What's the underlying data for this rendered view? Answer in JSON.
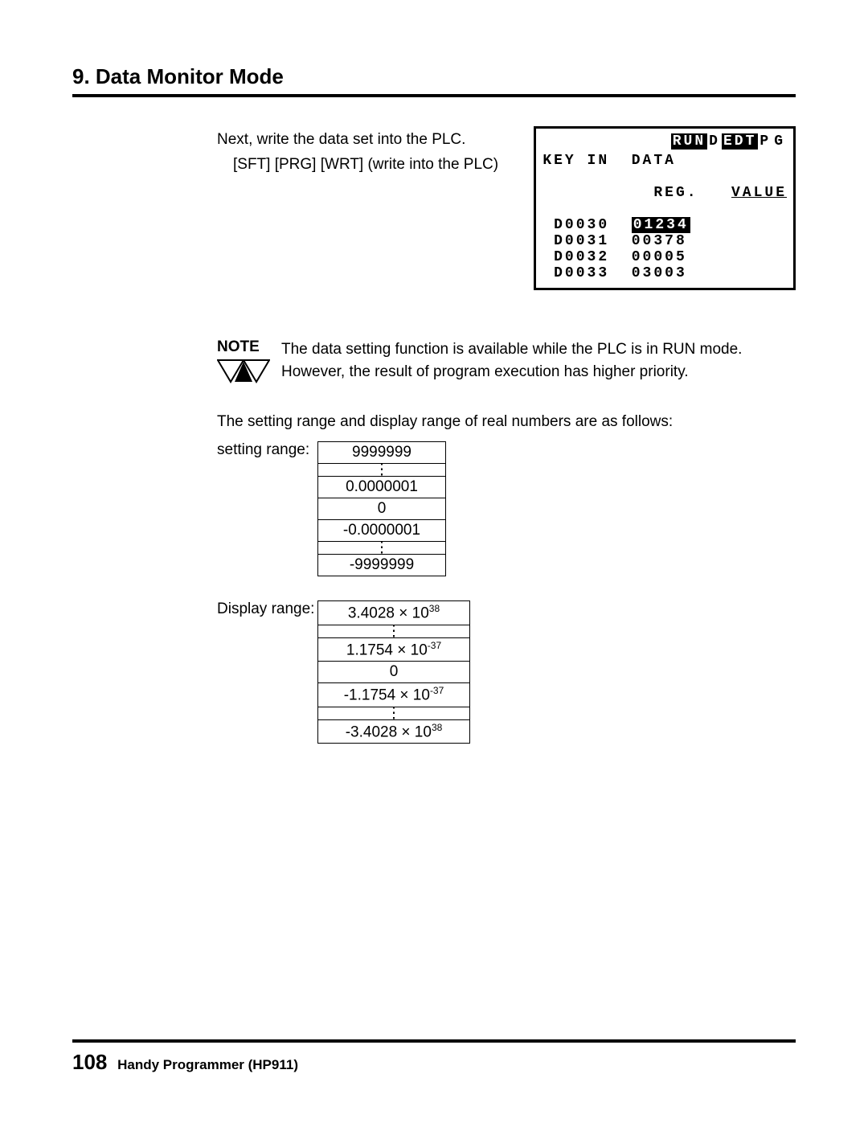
{
  "section_title": "9. Data Monitor Mode",
  "intro_line1": "Next, write the data set into the PLC.",
  "intro_line2": "[SFT] [PRG] [WRT]  (write into the PLC)",
  "lcd": {
    "modes": [
      "RUN",
      "D",
      "EDT",
      "P",
      "G"
    ],
    "modes_inv": [
      true,
      false,
      true,
      false,
      false
    ],
    "header": "KEY IN  DATA",
    "sub_left": "REG.",
    "sub_right": "VALUE",
    "rows": [
      {
        "reg": "D0030",
        "val": "01234",
        "inv": true
      },
      {
        "reg": "D0031",
        "val": "00378",
        "inv": false
      },
      {
        "reg": "D0032",
        "val": "00005",
        "inv": false
      },
      {
        "reg": "D0033",
        "val": "03003",
        "inv": false
      }
    ]
  },
  "note_label": "NOTE",
  "note_text1": "The data setting function is available while the PLC is in RUN mode.",
  "note_text2": "However, the result of program execution has higher priority.",
  "range_intro": "The setting range and display range of real numbers are as follows:",
  "setting_label": "setting range:",
  "setting_values": [
    "9999999",
    "⋮",
    "0.0000001",
    "0",
    "-0.0000001",
    "⋮",
    "-9999999"
  ],
  "display_label": "Display range:",
  "display_values": [
    {
      "base": "3.4028 × 10",
      "exp": "38"
    },
    {
      "base": "⋮",
      "exp": ""
    },
    {
      "base": "1.1754 × 10",
      "exp": "-37"
    },
    {
      "base": "0",
      "exp": ""
    },
    {
      "base": "-1.1754 × 10",
      "exp": "-37"
    },
    {
      "base": "⋮",
      "exp": ""
    },
    {
      "base": "-3.4028 × 10",
      "exp": "38"
    }
  ],
  "page_number": "108",
  "footer_text": "Handy Programmer (HP911)"
}
